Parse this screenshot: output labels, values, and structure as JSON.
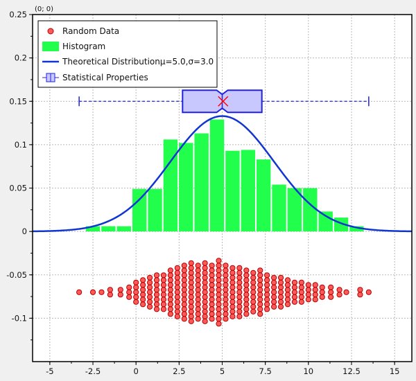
{
  "corner_label": "(0; 0)",
  "chart_data": {
    "type": "histogram",
    "xlim": [
      -6,
      16
    ],
    "ylim": [
      -0.15,
      0.25
    ],
    "x_ticks": [
      {
        "v": -5,
        "label": "-5"
      },
      {
        "v": -2.5,
        "label": "-2.5"
      },
      {
        "v": 0,
        "label": "0"
      },
      {
        "v": 2.5,
        "label": "2.5"
      },
      {
        "v": 5,
        "label": "5"
      },
      {
        "v": 7.5,
        "label": "7.5"
      },
      {
        "v": 10,
        "label": "10"
      },
      {
        "v": 12.5,
        "label": "12.5"
      },
      {
        "v": 15,
        "label": "15"
      }
    ],
    "y_ticks": [
      {
        "v": 0.25,
        "label": "0.25"
      },
      {
        "v": 0.2,
        "label": "0.2"
      },
      {
        "v": 0.15,
        "label": "0.15"
      },
      {
        "v": 0.1,
        "label": "0.1"
      },
      {
        "v": 0.05,
        "label": "0.05"
      },
      {
        "v": 0,
        "label": "0"
      },
      {
        "v": -0.05,
        "label": "-0.05"
      },
      {
        "v": -0.1,
        "label": "-0.1"
      }
    ],
    "grid": true,
    "legend_position": "top-left",
    "legend": [
      {
        "key": "scatter",
        "label": "Random Data"
      },
      {
        "key": "histogram",
        "label": "Histogram"
      },
      {
        "key": "curve",
        "label": "Theoretical Distributionμ=5.0,σ=3.0"
      },
      {
        "key": "box",
        "label": "Statistical Properties"
      }
    ],
    "histogram": {
      "bin_width": 0.9,
      "bins": [
        {
          "x": -2.5,
          "y": 0.006
        },
        {
          "x": -1.6,
          "y": 0.006
        },
        {
          "x": -0.7,
          "y": 0.006
        },
        {
          "x": 0.2,
          "y": 0.049
        },
        {
          "x": 1.1,
          "y": 0.049
        },
        {
          "x": 2.0,
          "y": 0.106
        },
        {
          "x": 2.9,
          "y": 0.102
        },
        {
          "x": 3.8,
          "y": 0.113
        },
        {
          "x": 4.7,
          "y": 0.129
        },
        {
          "x": 5.6,
          "y": 0.093
        },
        {
          "x": 6.5,
          "y": 0.094
        },
        {
          "x": 7.4,
          "y": 0.083
        },
        {
          "x": 8.3,
          "y": 0.054
        },
        {
          "x": 9.2,
          "y": 0.05
        },
        {
          "x": 10.1,
          "y": 0.05
        },
        {
          "x": 11.0,
          "y": 0.023
        },
        {
          "x": 11.9,
          "y": 0.016
        },
        {
          "x": 12.8,
          "y": 0.006
        }
      ]
    },
    "theoretical": {
      "mu": 5.0,
      "sigma": 3.0
    },
    "boxplot": {
      "y": 0.15,
      "min": -3.3,
      "q1": 2.7,
      "median": 5.0,
      "q3": 7.3,
      "max": 13.5,
      "mean": 5.05
    },
    "scatter_y_center": -0.07,
    "scatter_bins": [
      {
        "x": -3.3,
        "n": 1
      },
      {
        "x": -2.5,
        "n": 1
      },
      {
        "x": -2.0,
        "n": 1
      },
      {
        "x": -1.5,
        "n": 2
      },
      {
        "x": -0.9,
        "n": 2
      },
      {
        "x": -0.4,
        "n": 3
      },
      {
        "x": 0.0,
        "n": 5
      },
      {
        "x": 0.4,
        "n": 6
      },
      {
        "x": 0.8,
        "n": 7
      },
      {
        "x": 1.2,
        "n": 8
      },
      {
        "x": 1.6,
        "n": 8
      },
      {
        "x": 2.0,
        "n": 10
      },
      {
        "x": 2.4,
        "n": 11
      },
      {
        "x": 2.8,
        "n": 12
      },
      {
        "x": 3.2,
        "n": 13
      },
      {
        "x": 3.6,
        "n": 12
      },
      {
        "x": 4.0,
        "n": 13
      },
      {
        "x": 4.4,
        "n": 12
      },
      {
        "x": 4.8,
        "n": 14
      },
      {
        "x": 5.2,
        "n": 12
      },
      {
        "x": 5.6,
        "n": 11
      },
      {
        "x": 6.0,
        "n": 11
      },
      {
        "x": 6.4,
        "n": 10
      },
      {
        "x": 6.8,
        "n": 9
      },
      {
        "x": 7.2,
        "n": 10
      },
      {
        "x": 7.6,
        "n": 8
      },
      {
        "x": 8.0,
        "n": 7
      },
      {
        "x": 8.4,
        "n": 7
      },
      {
        "x": 8.8,
        "n": 6
      },
      {
        "x": 9.2,
        "n": 5
      },
      {
        "x": 9.6,
        "n": 5
      },
      {
        "x": 10.0,
        "n": 4
      },
      {
        "x": 10.4,
        "n": 4
      },
      {
        "x": 10.8,
        "n": 3
      },
      {
        "x": 11.3,
        "n": 3
      },
      {
        "x": 11.8,
        "n": 2
      },
      {
        "x": 12.2,
        "n": 1
      },
      {
        "x": 13.0,
        "n": 2
      },
      {
        "x": 13.5,
        "n": 1
      }
    ],
    "colors": {
      "background": "#f0f0f0",
      "histogram": "#21ff4c",
      "curve": "#1036d2",
      "scatter_fill": "#ff5a5a",
      "scatter_edge": "#b30000",
      "box_fill": "#c8c8ff",
      "box_edge": "#2020e0",
      "mean_marker": "#ff0000",
      "grid": "#b8b8b8"
    }
  }
}
